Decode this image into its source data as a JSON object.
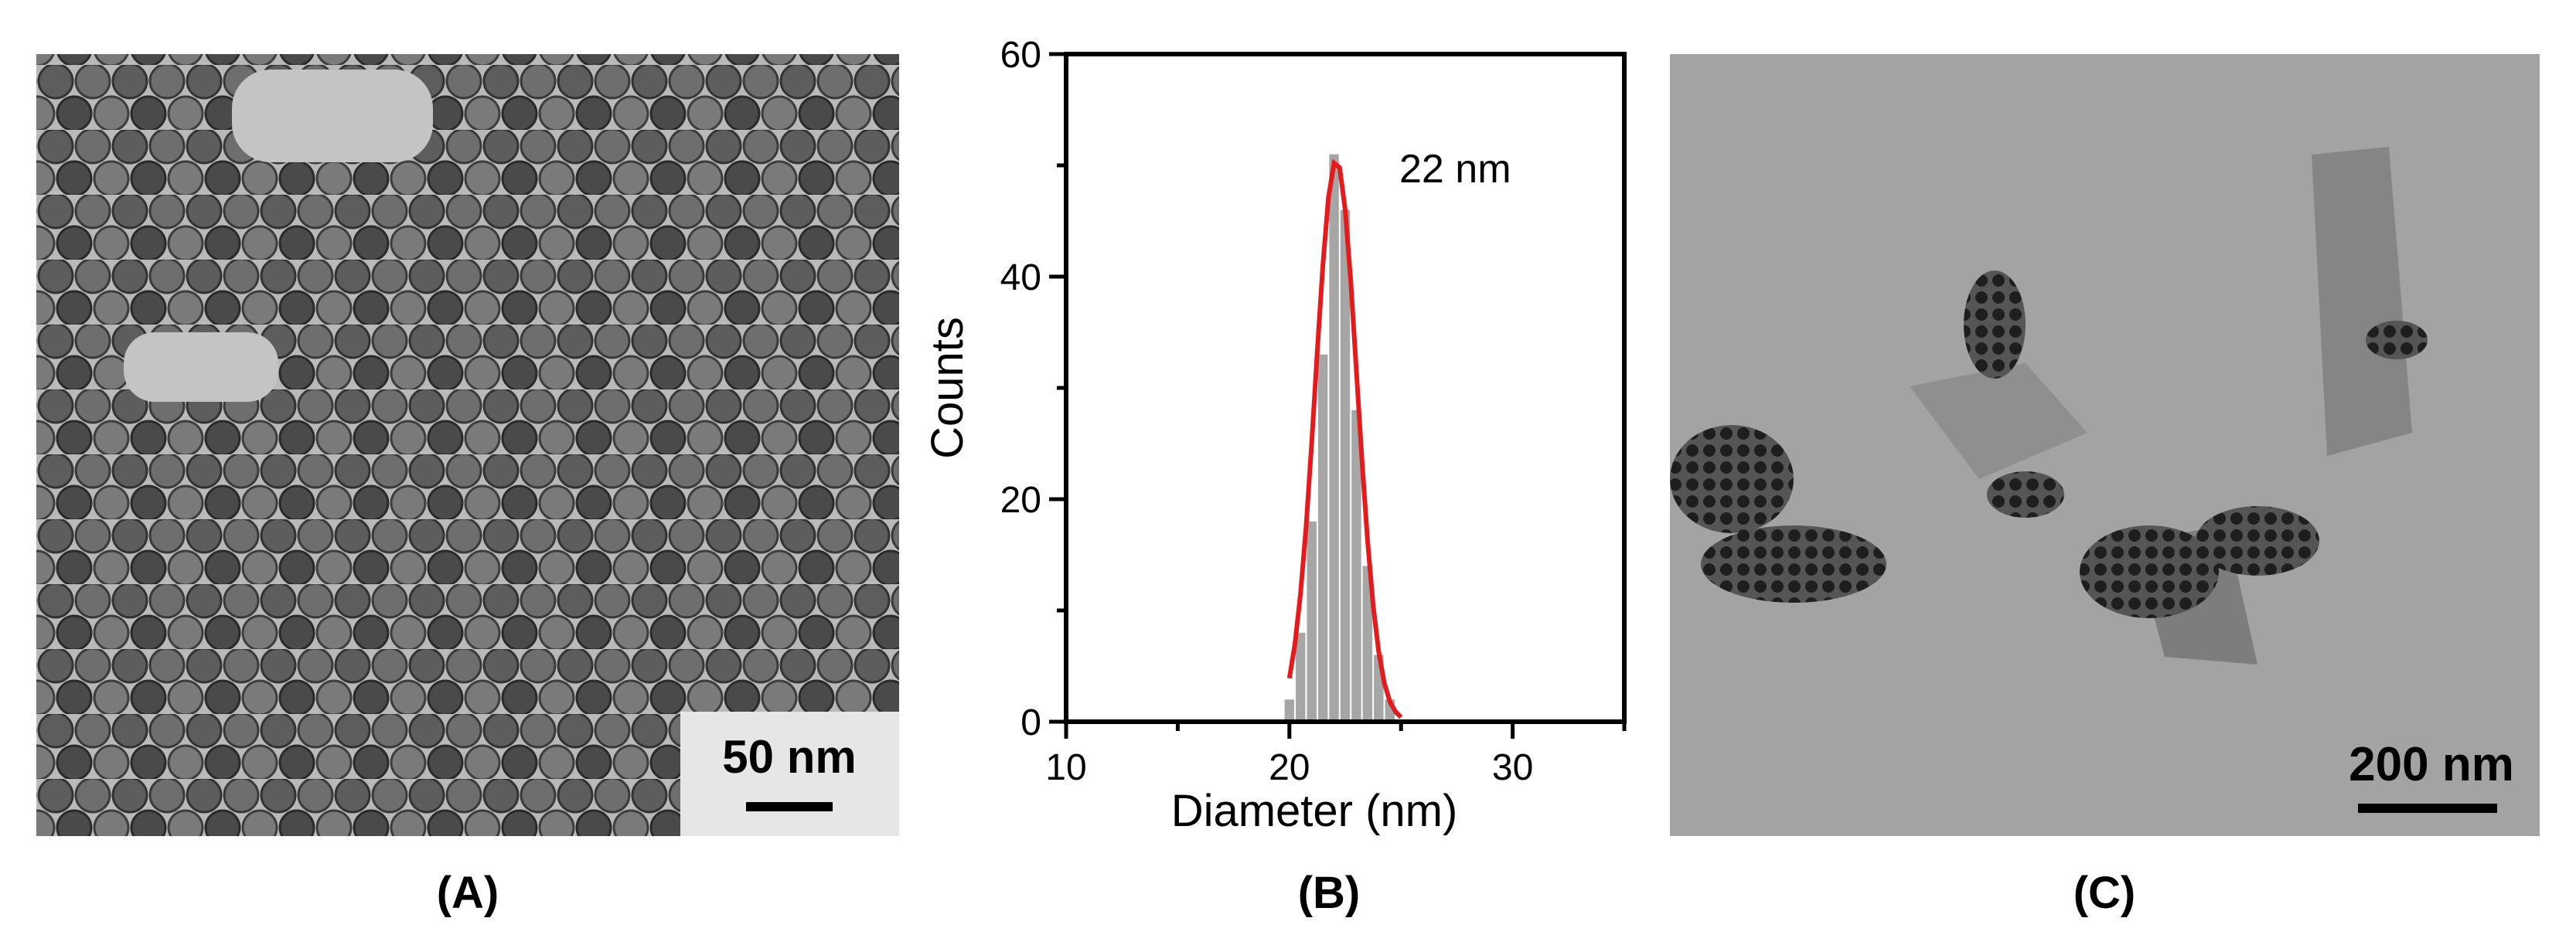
{
  "panels": {
    "a": {
      "label": "(A)",
      "scale_bar": "50 nm"
    },
    "b": {
      "label": "(B)"
    },
    "c": {
      "label": "(C)",
      "scale_bar": "200 nm"
    }
  },
  "chart_data": {
    "type": "histogram",
    "xlabel": "Diameter (nm)",
    "ylabel": "Counts",
    "annotation": "22 nm",
    "bins": [
      19.75,
      20.25,
      20.75,
      21.25,
      21.75,
      22.25,
      22.75,
      23.25,
      23.75,
      24.25,
      24.75
    ],
    "values": [
      2,
      8,
      18,
      33,
      51,
      46,
      28,
      14,
      6,
      2
    ],
    "color": "#a6a6a6",
    "fit": {
      "color": "#e41a1c",
      "x": [
        20,
        20.25,
        20.5,
        20.75,
        21,
        21.25,
        21.5,
        21.75,
        22,
        22.25,
        22.5,
        22.75,
        23,
        23.25,
        23.5,
        23.75,
        24,
        24.25,
        24.5,
        24.75,
        25
      ],
      "values": [
        3.9,
        7.0,
        11.5,
        17.6,
        25.1,
        33.3,
        41.0,
        47.1,
        50.2,
        49.8,
        46.0,
        39.6,
        31.6,
        23.5,
        16.3,
        10.5,
        6.3,
        3.5,
        1.8,
        0.9,
        0.4
      ]
    },
    "xlim": [
      10,
      35
    ],
    "ylim": [
      0,
      60
    ],
    "xticks": [
      10,
      20,
      30
    ],
    "xminor": [
      15,
      25,
      35
    ],
    "yticks": [
      0,
      20,
      40,
      60
    ],
    "yminor": [
      10,
      30,
      50
    ]
  }
}
